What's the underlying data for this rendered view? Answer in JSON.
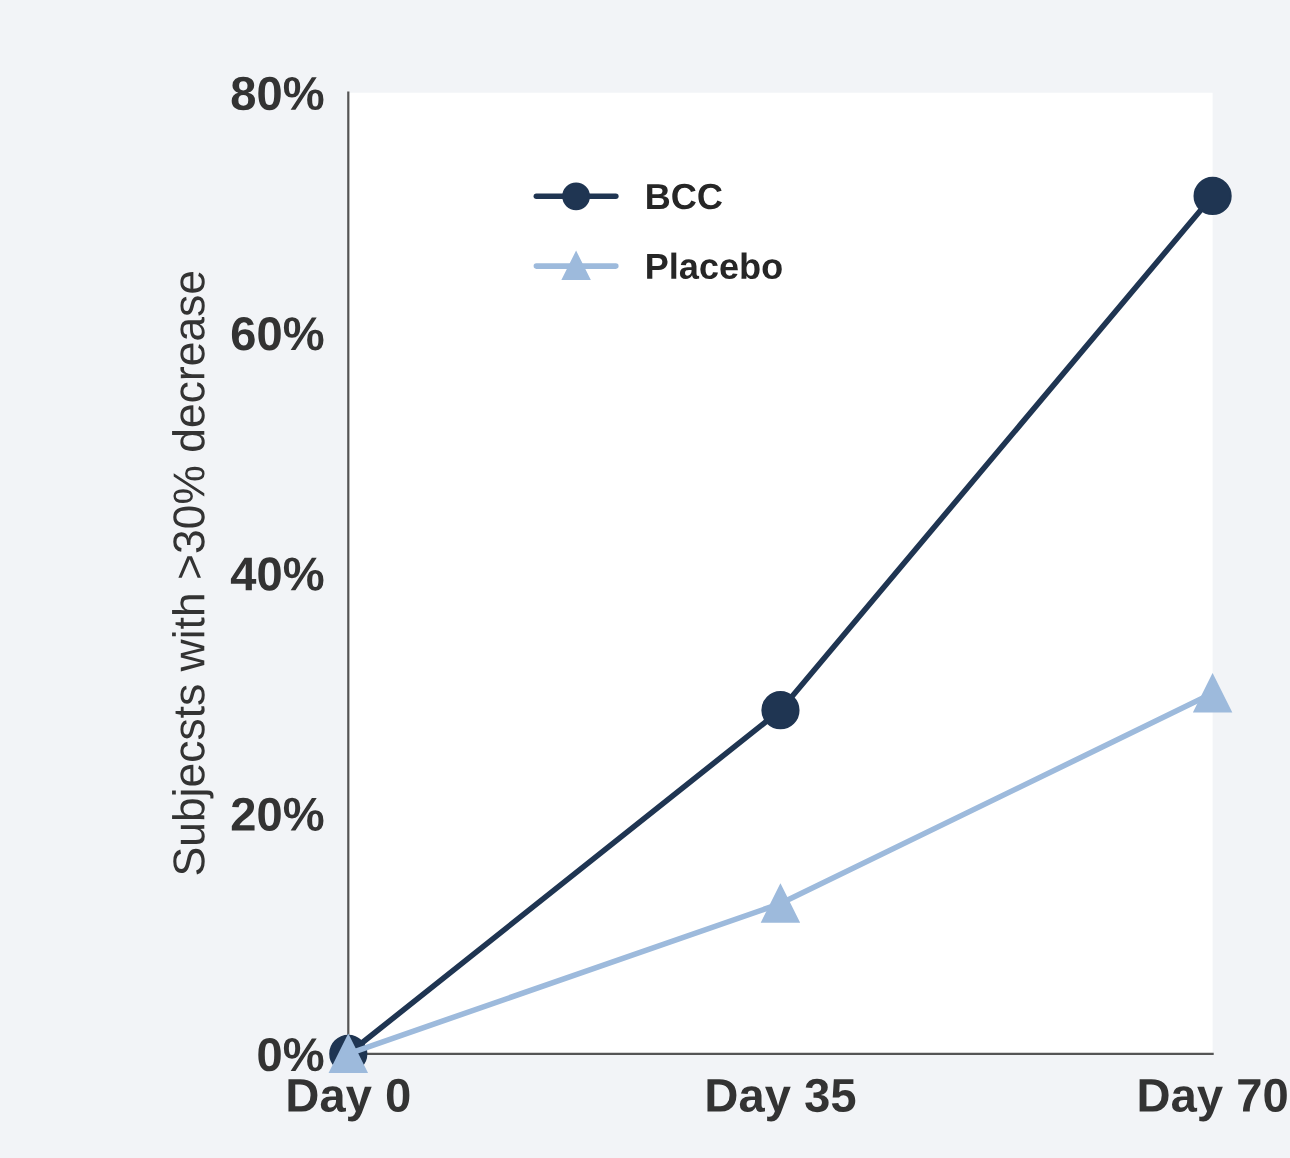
{
  "chart_data": {
    "type": "line",
    "ylabel": "Subjecsts with >30% decrease",
    "categories": [
      "Day 0",
      "Day 35",
      "Day 70"
    ],
    "series": [
      {
        "name": "BCC",
        "color": "#1f3552",
        "marker": "circle",
        "values": [
          0,
          28.6,
          71.4
        ]
      },
      {
        "name": "Placebo",
        "color": "#9dbadc",
        "marker": "triangle",
        "values": [
          0,
          12.5,
          30
        ]
      }
    ],
    "ylim": [
      0,
      80
    ],
    "yticks": [
      {
        "value": 0,
        "label": "0%"
      },
      {
        "value": 20,
        "label": "20%"
      },
      {
        "value": 40,
        "label": "40%"
      },
      {
        "value": 60,
        "label": "60%"
      },
      {
        "value": 80,
        "label": "80%"
      }
    ],
    "grid": false,
    "legend": "top left",
    "line_style": "solid"
  }
}
